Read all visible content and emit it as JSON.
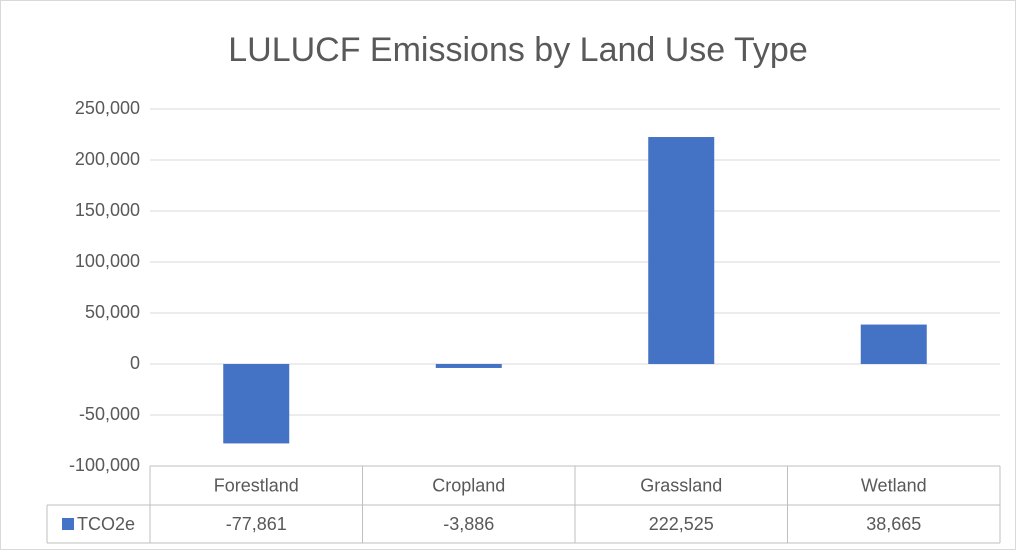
{
  "chart_data": {
    "type": "bar",
    "title": "LULUCF Emissions by Land Use Type",
    "categories": [
      "Forestland",
      "Cropland",
      "Grassland",
      "Wetland"
    ],
    "series": [
      {
        "name": "TCO2e",
        "color": "#4472c4",
        "values": [
          -77861,
          -3886,
          222525,
          38665
        ],
        "value_labels": [
          "-77,861",
          "-3,886",
          "222,525",
          "38,665"
        ]
      }
    ],
    "ylim": [
      -100000,
      250000
    ],
    "yticks": [
      {
        "value": -100000,
        "label": "-100,000"
      },
      {
        "value": -50000,
        "label": "-50,000"
      },
      0,
      {
        "value": 50000,
        "label": "50,000"
      },
      {
        "value": 100000,
        "label": "100,000"
      },
      {
        "value": 150000,
        "label": "150,000"
      },
      {
        "value": 200000,
        "label": "200,000"
      },
      {
        "value": 250000,
        "label": "250,000"
      }
    ],
    "grid": true
  }
}
